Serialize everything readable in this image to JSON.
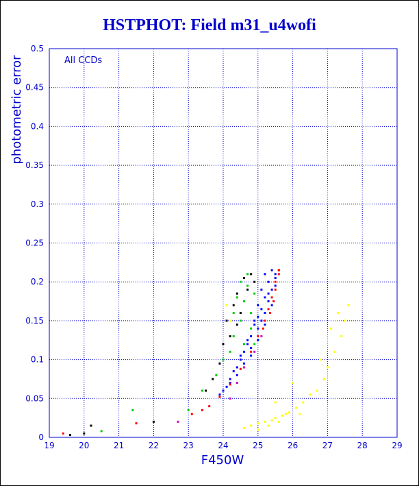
{
  "chart_data": {
    "type": "scatter",
    "title": "HSTPHOT: Field m31_u4wofi",
    "xlabel": "F450W",
    "ylabel": "photometric error",
    "annotation": "All CCDs",
    "xlim": [
      19,
      29
    ],
    "ylim": [
      0,
      0.5
    ],
    "x_ticks": [
      "19",
      "20",
      "21",
      "22",
      "23",
      "24",
      "25",
      "26",
      "27",
      "28",
      "29"
    ],
    "y_ticks": [
      "0",
      "0.05",
      "0.1",
      "0.15",
      "0.2",
      "0.25",
      "0.3",
      "0.35",
      "0.4",
      "0.45",
      "0.5"
    ],
    "grid": true,
    "series": [
      {
        "color": "#0000ff",
        "points": [
          [
            24.2,
            0.07
          ],
          [
            24.4,
            0.09
          ],
          [
            24.6,
            0.11
          ],
          [
            24.8,
            0.13
          ],
          [
            24.9,
            0.15
          ],
          [
            25.0,
            0.17
          ],
          [
            25.1,
            0.19
          ],
          [
            25.2,
            0.21
          ],
          [
            24.3,
            0.085
          ],
          [
            24.5,
            0.1
          ],
          [
            24.7,
            0.125
          ],
          [
            24.9,
            0.145
          ],
          [
            25.1,
            0.165
          ],
          [
            25.3,
            0.2
          ],
          [
            25.4,
            0.215
          ],
          [
            25.2,
            0.18
          ],
          [
            24.6,
            0.095
          ],
          [
            24.8,
            0.115
          ],
          [
            25.0,
            0.14
          ],
          [
            25.2,
            0.16
          ],
          [
            25.4,
            0.19
          ],
          [
            25.5,
            0.21
          ],
          [
            25.3,
            0.175
          ],
          [
            25.1,
            0.15
          ],
          [
            24.0,
            0.06
          ],
          [
            24.2,
            0.075
          ],
          [
            24.5,
            0.105
          ],
          [
            24.7,
            0.12
          ],
          [
            25.0,
            0.155
          ],
          [
            25.3,
            0.185
          ],
          [
            25.5,
            0.205
          ],
          [
            25.6,
            0.215
          ],
          [
            24.1,
            0.065
          ],
          [
            23.9,
            0.055
          ],
          [
            24.4,
            0.08
          ],
          [
            24.8,
            0.105
          ],
          [
            25.0,
            0.125
          ],
          [
            25.2,
            0.145
          ],
          [
            25.4,
            0.17
          ],
          [
            25.5,
            0.195
          ]
        ]
      },
      {
        "color": "#ff0000",
        "points": [
          [
            23.6,
            0.04
          ],
          [
            23.9,
            0.052
          ],
          [
            24.2,
            0.068
          ],
          [
            24.5,
            0.088
          ],
          [
            24.8,
            0.11
          ],
          [
            25.0,
            0.13
          ],
          [
            25.2,
            0.15
          ],
          [
            25.3,
            0.165
          ],
          [
            25.4,
            0.18
          ],
          [
            25.5,
            0.19
          ],
          [
            25.5,
            0.2
          ],
          [
            25.6,
            0.21
          ],
          [
            25.6,
            0.215
          ],
          [
            25.45,
            0.175
          ],
          [
            25.35,
            0.16
          ],
          [
            25.15,
            0.14
          ],
          [
            19.4,
            0.005
          ],
          [
            21.5,
            0.018
          ],
          [
            23.1,
            0.03
          ],
          [
            23.4,
            0.035
          ]
        ]
      },
      {
        "color": "#00cc00",
        "points": [
          [
            24.3,
            0.13
          ],
          [
            24.5,
            0.15
          ],
          [
            24.6,
            0.175
          ],
          [
            24.4,
            0.18
          ],
          [
            24.8,
            0.16
          ],
          [
            24.9,
            0.185
          ],
          [
            24.5,
            0.2
          ],
          [
            24.7,
            0.21
          ],
          [
            24.8,
            0.14
          ],
          [
            24.6,
            0.12
          ],
          [
            24.9,
            0.12
          ],
          [
            24.3,
            0.16
          ],
          [
            24.7,
            0.195
          ],
          [
            24.2,
            0.11
          ],
          [
            23.8,
            0.08
          ],
          [
            23.4,
            0.06
          ],
          [
            21.4,
            0.035
          ],
          [
            20.5,
            0.008
          ],
          [
            23.0,
            0.035
          ],
          [
            24.0,
            0.1
          ]
        ]
      },
      {
        "color": "#000000",
        "points": [
          [
            24.1,
            0.15
          ],
          [
            24.3,
            0.17
          ],
          [
            24.4,
            0.185
          ],
          [
            24.6,
            0.205
          ],
          [
            24.5,
            0.16
          ],
          [
            24.2,
            0.13
          ],
          [
            24.7,
            0.19
          ],
          [
            24.8,
            0.21
          ],
          [
            24.0,
            0.12
          ],
          [
            23.9,
            0.095
          ],
          [
            23.7,
            0.075
          ],
          [
            23.5,
            0.06
          ],
          [
            20.2,
            0.015
          ],
          [
            20.0,
            0.005
          ],
          [
            22.0,
            0.02
          ],
          [
            19.6,
            0.003
          ],
          [
            24.9,
            0.2
          ],
          [
            24.4,
            0.145
          ]
        ]
      },
      {
        "color": "#ffff00",
        "points": [
          [
            24.6,
            0.012
          ],
          [
            24.8,
            0.015
          ],
          [
            25.0,
            0.018
          ],
          [
            25.2,
            0.02
          ],
          [
            25.4,
            0.022
          ],
          [
            25.5,
            0.025
          ],
          [
            25.7,
            0.028
          ],
          [
            25.8,
            0.03
          ],
          [
            25.9,
            0.032
          ],
          [
            26.1,
            0.038
          ],
          [
            26.3,
            0.045
          ],
          [
            26.5,
            0.055
          ],
          [
            26.7,
            0.06
          ],
          [
            26.9,
            0.075
          ],
          [
            27.0,
            0.09
          ],
          [
            27.2,
            0.11
          ],
          [
            27.4,
            0.13
          ],
          [
            27.5,
            0.15
          ],
          [
            26.0,
            0.07
          ],
          [
            25.5,
            0.045
          ],
          [
            27.6,
            0.17
          ],
          [
            27.1,
            0.14
          ],
          [
            26.8,
            0.1
          ],
          [
            24.2,
            0.15
          ],
          [
            24.1,
            0.17
          ],
          [
            25.3,
            0.015
          ],
          [
            25.6,
            0.02
          ],
          [
            26.2,
            0.03
          ],
          [
            25.0,
            0.01
          ],
          [
            27.3,
            0.16
          ]
        ]
      },
      {
        "color": "#cc00cc",
        "points": [
          [
            24.2,
            0.05
          ],
          [
            24.4,
            0.07
          ],
          [
            24.6,
            0.09
          ],
          [
            22.7,
            0.02
          ],
          [
            24.9,
            0.11
          ],
          [
            25.1,
            0.13
          ]
        ]
      }
    ]
  }
}
